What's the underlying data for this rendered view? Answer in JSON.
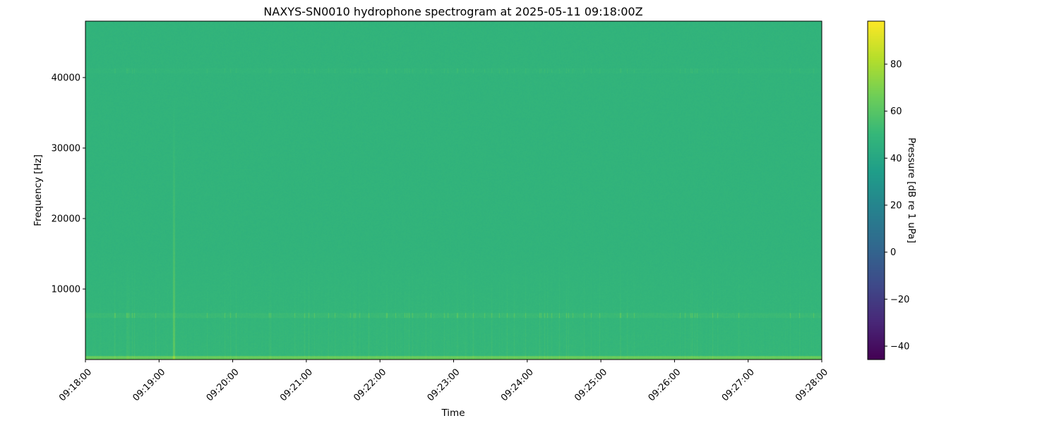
{
  "chart_data": {
    "type": "heatmap",
    "title": "NAXYS-SN0010 hydrophone spectrogram at 2025-05-11 09:18:00Z",
    "xlabel": "Time",
    "ylabel": "Frequency [Hz]",
    "x_ticks": [
      "09:18:00",
      "09:19:00",
      "09:20:00",
      "09:21:00",
      "09:22:00",
      "09:23:00",
      "09:24:00",
      "09:25:00",
      "09:26:00",
      "09:27:00",
      "09:28:00"
    ],
    "xlim": [
      "09:18:00",
      "09:28:00"
    ],
    "y_ticks": [
      10000,
      20000,
      30000,
      40000
    ],
    "ylim": [
      0,
      48000
    ],
    "colorbar": {
      "label": "Pressure [dB re 1 uPa]",
      "colormap": "viridis",
      "ticks": [
        -40,
        -20,
        0,
        20,
        40,
        60,
        80
      ],
      "clim": [
        -45.7,
        98.3
      ]
    },
    "background_level_db": 48,
    "features": [
      {
        "type": "band",
        "frequency_hz": [
          0,
          500
        ],
        "level_db": 62
      },
      {
        "type": "band",
        "frequency_hz": [
          6000,
          6600
        ],
        "level_db": 58
      },
      {
        "type": "band",
        "frequency_hz": [
          40700,
          41300
        ],
        "level_db": 52
      },
      {
        "type": "broadband_transient",
        "time": "09:19:12",
        "level_db": 60
      }
    ],
    "grid": false
  }
}
